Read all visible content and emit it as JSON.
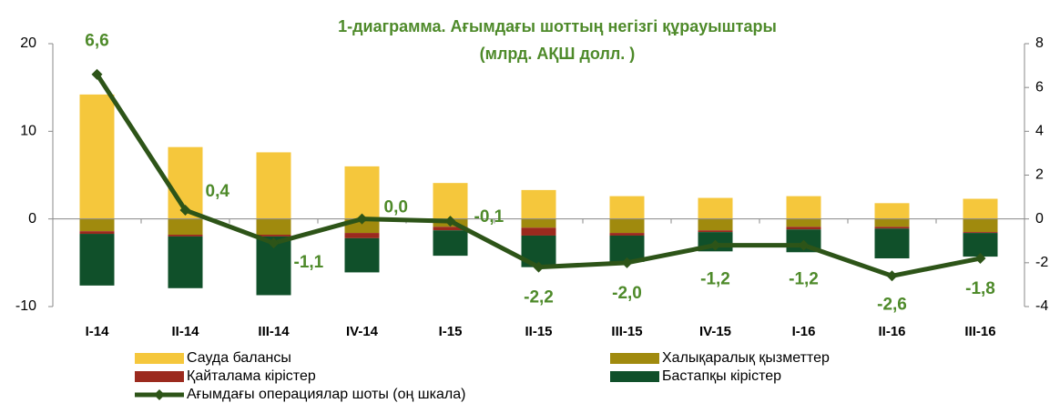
{
  "chart_data": {
    "type": "bar",
    "stacked": true,
    "title": "1-диаграмма. Ағымдағы шоттың негізгі құрауыштары",
    "subtitle": "(млрд. АҚШ долл. )",
    "categories": [
      "I-14",
      "II-14",
      "III-14",
      "IV-14",
      "I-15",
      "II-15",
      "III-15",
      "IV-15",
      "I-16",
      "II-16",
      "III-16"
    ],
    "ylim": [
      -10,
      20
    ],
    "yticks": [
      -10,
      0,
      10,
      20
    ],
    "y2lim": [
      -4,
      8
    ],
    "y2ticks": [
      -4,
      -2,
      0,
      2,
      4,
      6,
      8
    ],
    "series": [
      {
        "name": "Сауда балансы",
        "color": "#f5c73c",
        "values": [
          14.2,
          8.2,
          7.6,
          6.0,
          4.1,
          3.3,
          2.6,
          2.4,
          2.6,
          1.8,
          2.3
        ]
      },
      {
        "name": "Халықаралық қызметтер",
        "color": "#a08a0e",
        "values": [
          -1.4,
          -1.8,
          -1.8,
          -1.6,
          -0.9,
          -1.0,
          -1.6,
          -1.3,
          -0.9,
          -0.9,
          -1.5
        ]
      },
      {
        "name": "Қайталама кірістер",
        "color": "#9b2a1e",
        "values": [
          -0.3,
          -0.2,
          -0.2,
          -0.6,
          -0.4,
          -0.9,
          -0.3,
          -0.2,
          -0.3,
          -0.2,
          -0.1
        ]
      },
      {
        "name": "Бастапқы кірістер",
        "color": "#10502a",
        "values": [
          -5.9,
          -5.9,
          -6.7,
          -3.9,
          -2.9,
          -3.6,
          -3.0,
          -2.2,
          -2.6,
          -3.4,
          -2.7
        ]
      },
      {
        "name": "Ағымдағы операциялар шоты (оң шкала)",
        "type": "line",
        "axis": "y2",
        "color": "#2d5418",
        "values": [
          6.6,
          0.4,
          -1.1,
          0.0,
          -0.1,
          -2.2,
          -2.0,
          -1.2,
          -1.2,
          -2.6,
          -1.8
        ],
        "value_labels": [
          "6,6",
          "0,4",
          "-1,1",
          "0,0",
          "-0,1",
          "-2,2",
          "-2,0",
          "-1,2",
          "-1,2",
          "-2,6",
          "-1,8"
        ]
      }
    ]
  }
}
